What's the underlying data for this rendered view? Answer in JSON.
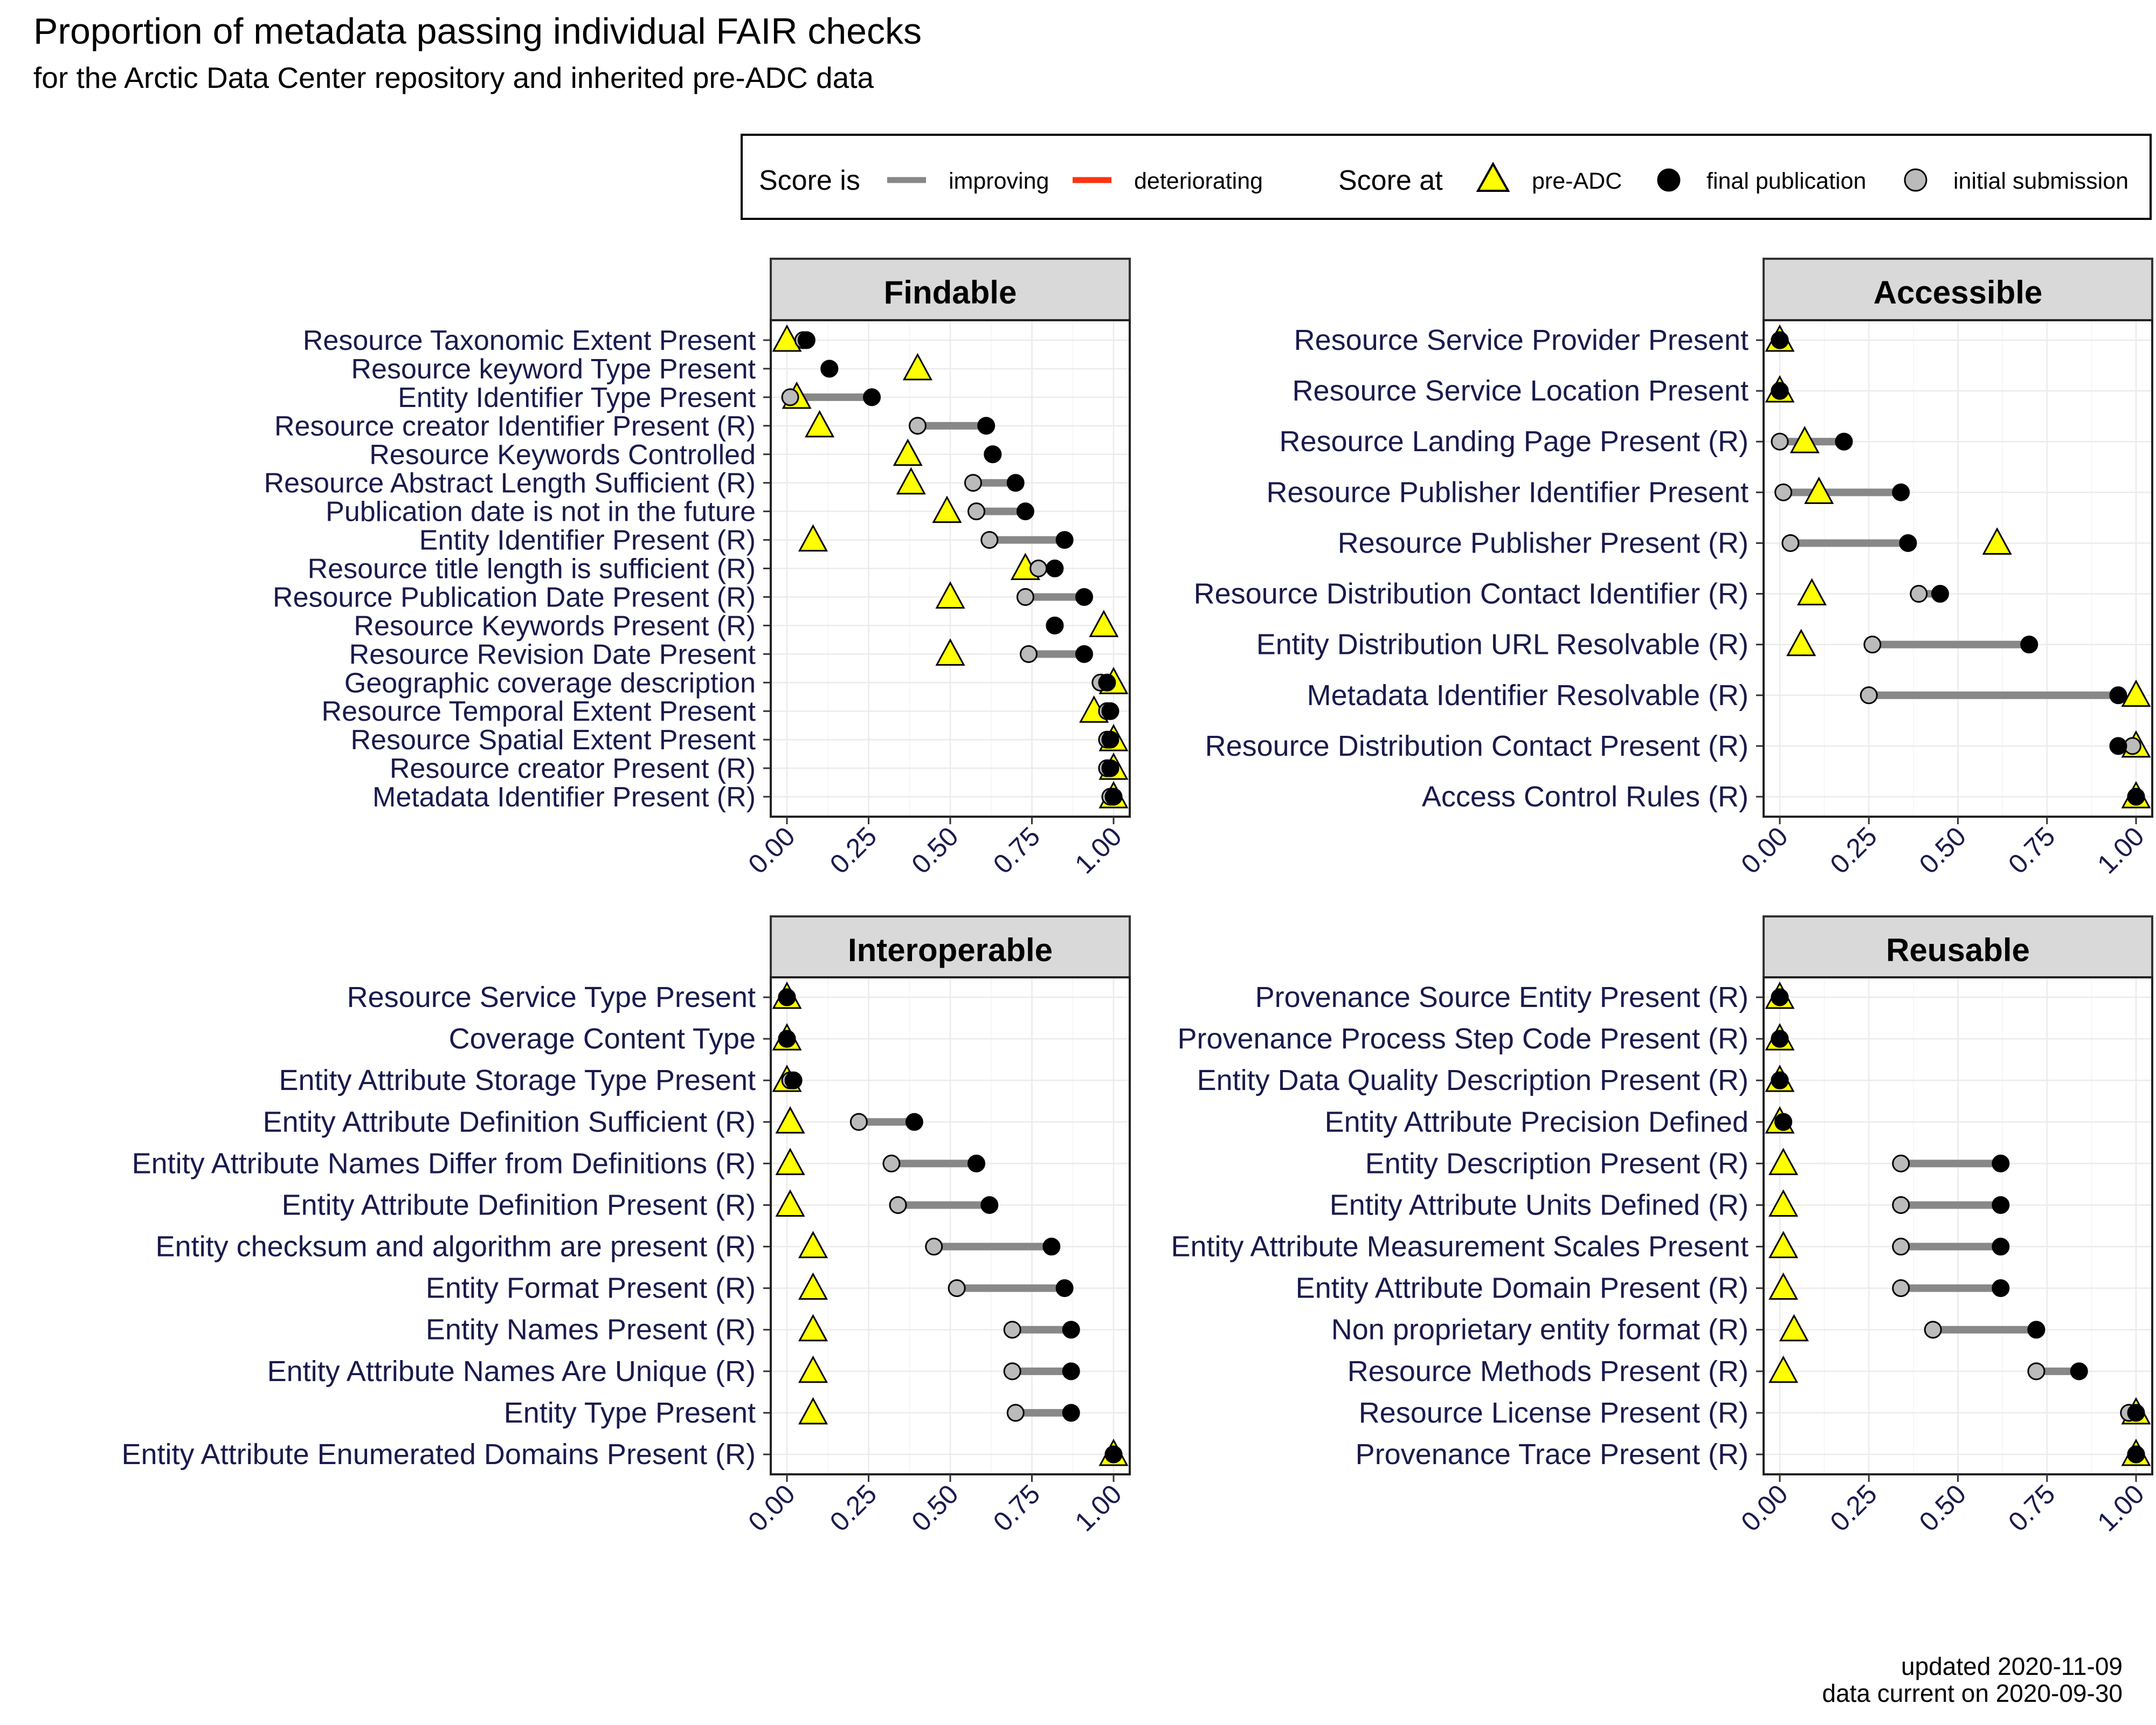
{
  "title": "Proportion of metadata passing individual FAIR checks",
  "subtitle": "for the Arctic Data Center repository and inherited pre-ADC data",
  "legend": {
    "score_is_label": "Score is",
    "improving_label": "improving",
    "deteriorating_label": "deteriorating",
    "score_at_label": "Score at",
    "pre_adc_label": "pre-ADC",
    "final_label": "final publication",
    "initial_label": "initial submission"
  },
  "caption": {
    "line1": "updated 2020-11-09",
    "line2": "data current on 2020-09-30"
  },
  "colors": {
    "improving": "#888888",
    "deteriorating": "#ff3311",
    "pre_adc_fill": "#ffff00",
    "final_fill": "#000000",
    "initial_fill": "#bbbbbb",
    "strip_fill": "#d9d9d9",
    "label_text": "#1a1a4d"
  },
  "chart_data": [
    {
      "type": "dumbbell",
      "title": "Findable",
      "xlim": [
        0,
        1
      ],
      "xticks": [
        "0.00",
        "0.25",
        "0.50",
        "0.75",
        "1.00"
      ],
      "series": [
        {
          "name": "pre-ADC"
        },
        {
          "name": "final publication"
        },
        {
          "name": "initial submission"
        }
      ],
      "checks": [
        {
          "label": "Resource Taxonomic Extent Present",
          "pre": 0.0,
          "initial": 0.05,
          "final": 0.06
        },
        {
          "label": "Resource keyword Type Present",
          "pre": 0.4,
          "initial": 0.13,
          "final": 0.13
        },
        {
          "label": "Entity Identifier Type Present",
          "pre": 0.03,
          "initial": 0.01,
          "final": 0.26
        },
        {
          "label": "Resource creator Identifier Present (R)",
          "pre": 0.1,
          "initial": 0.4,
          "final": 0.61
        },
        {
          "label": "Resource Keywords Controlled",
          "pre": 0.37,
          "initial": 0.63,
          "final": 0.63
        },
        {
          "label": "Resource Abstract Length Sufficient (R)",
          "pre": 0.38,
          "initial": 0.57,
          "final": 0.7
        },
        {
          "label": "Publication date is not in the future",
          "pre": 0.49,
          "initial": 0.58,
          "final": 0.73
        },
        {
          "label": "Entity Identifier Present (R)",
          "pre": 0.08,
          "initial": 0.62,
          "final": 0.85
        },
        {
          "label": "Resource title length is sufficient (R)",
          "pre": 0.73,
          "initial": 0.77,
          "final": 0.82
        },
        {
          "label": "Resource Publication Date Present (R)",
          "pre": 0.5,
          "initial": 0.73,
          "final": 0.91
        },
        {
          "label": "Resource Keywords Present (R)",
          "pre": 0.97,
          "initial": 0.82,
          "final": 0.82
        },
        {
          "label": "Resource Revision Date Present",
          "pre": 0.5,
          "initial": 0.74,
          "final": 0.91
        },
        {
          "label": "Geographic coverage description",
          "pre": 1.0,
          "initial": 0.96,
          "final": 0.98
        },
        {
          "label": "Resource Temporal Extent Present",
          "pre": 0.94,
          "initial": 0.98,
          "final": 0.99
        },
        {
          "label": "Resource Spatial Extent Present",
          "pre": 1.0,
          "initial": 0.98,
          "final": 0.99
        },
        {
          "label": "Resource creator Present (R)",
          "pre": 1.0,
          "initial": 0.98,
          "final": 0.99
        },
        {
          "label": "Metadata Identifier Present (R)",
          "pre": 1.0,
          "initial": 0.99,
          "final": 1.0
        }
      ]
    },
    {
      "type": "dumbbell",
      "title": "Accessible",
      "xlim": [
        0,
        1
      ],
      "xticks": [
        "0.00",
        "0.25",
        "0.50",
        "0.75",
        "1.00"
      ],
      "checks": [
        {
          "label": "Resource Service Provider Present",
          "pre": 0.0,
          "initial": 0.0,
          "final": 0.0
        },
        {
          "label": "Resource Service Location Present",
          "pre": 0.0,
          "initial": 0.0,
          "final": 0.0
        },
        {
          "label": "Resource Landing Page Present (R)",
          "pre": 0.07,
          "initial": 0.0,
          "final": 0.18
        },
        {
          "label": "Resource Publisher Identifier Present",
          "pre": 0.11,
          "initial": 0.01,
          "final": 0.34
        },
        {
          "label": "Resource Publisher Present (R)",
          "pre": 0.61,
          "initial": 0.03,
          "final": 0.36
        },
        {
          "label": "Resource Distribution Contact Identifier (R)",
          "pre": 0.09,
          "initial": 0.39,
          "final": 0.45
        },
        {
          "label": "Entity Distribution URL Resolvable (R)",
          "pre": 0.06,
          "initial": 0.26,
          "final": 0.7
        },
        {
          "label": "Metadata Identifier Resolvable (R)",
          "pre": 1.0,
          "initial": 0.25,
          "final": 0.95
        },
        {
          "label": "Resource Distribution Contact Present (R)",
          "pre": 1.0,
          "initial": 0.99,
          "final": 0.95
        },
        {
          "label": "Access Control Rules (R)",
          "pre": 1.0,
          "initial": 1.0,
          "final": 1.0
        }
      ]
    },
    {
      "type": "dumbbell",
      "title": "Interoperable",
      "xlim": [
        0,
        1
      ],
      "xticks": [
        "0.00",
        "0.25",
        "0.50",
        "0.75",
        "1.00"
      ],
      "checks": [
        {
          "label": "Resource Service Type Present",
          "pre": 0.0,
          "initial": 0.0,
          "final": 0.0
        },
        {
          "label": "Coverage Content Type",
          "pre": 0.0,
          "initial": 0.0,
          "final": 0.0
        },
        {
          "label": "Entity Attribute Storage Type Present",
          "pre": 0.0,
          "initial": 0.01,
          "final": 0.02
        },
        {
          "label": "Entity Attribute Definition Sufficient (R)",
          "pre": 0.01,
          "initial": 0.22,
          "final": 0.39
        },
        {
          "label": "Entity Attribute Names Differ from Definitions (R)",
          "pre": 0.01,
          "initial": 0.32,
          "final": 0.58
        },
        {
          "label": "Entity Attribute Definition Present (R)",
          "pre": 0.01,
          "initial": 0.34,
          "final": 0.62
        },
        {
          "label": "Entity checksum and algorithm are present (R)",
          "pre": 0.08,
          "initial": 0.45,
          "final": 0.81
        },
        {
          "label": "Entity Format Present (R)",
          "pre": 0.08,
          "initial": 0.52,
          "final": 0.85
        },
        {
          "label": "Entity Names Present (R)",
          "pre": 0.08,
          "initial": 0.69,
          "final": 0.87
        },
        {
          "label": "Entity Attribute Names Are Unique (R)",
          "pre": 0.08,
          "initial": 0.69,
          "final": 0.87
        },
        {
          "label": "Entity Type Present",
          "pre": 0.08,
          "initial": 0.7,
          "final": 0.87
        },
        {
          "label": "Entity Attribute Enumerated Domains Present (R)",
          "pre": 1.0,
          "initial": 1.0,
          "final": 1.0
        }
      ]
    },
    {
      "type": "dumbbell",
      "title": "Reusable",
      "xlim": [
        0,
        1
      ],
      "xticks": [
        "0.00",
        "0.25",
        "0.50",
        "0.75",
        "1.00"
      ],
      "checks": [
        {
          "label": "Provenance Source Entity Present (R)",
          "pre": 0.0,
          "initial": 0.0,
          "final": 0.0
        },
        {
          "label": "Provenance Process Step Code Present (R)",
          "pre": 0.0,
          "initial": 0.0,
          "final": 0.0
        },
        {
          "label": "Entity Data Quality Description Present (R)",
          "pre": 0.0,
          "initial": 0.0,
          "final": 0.0
        },
        {
          "label": "Entity Attribute Precision Defined",
          "pre": 0.0,
          "initial": 0.01,
          "final": 0.01
        },
        {
          "label": "Entity Description Present (R)",
          "pre": 0.01,
          "initial": 0.34,
          "final": 0.62
        },
        {
          "label": "Entity Attribute Units Defined (R)",
          "pre": 0.01,
          "initial": 0.34,
          "final": 0.62
        },
        {
          "label": "Entity Attribute Measurement Scales Present",
          "pre": 0.01,
          "initial": 0.34,
          "final": 0.62
        },
        {
          "label": "Entity Attribute Domain Present (R)",
          "pre": 0.01,
          "initial": 0.34,
          "final": 0.62
        },
        {
          "label": "Non proprietary entity format (R)",
          "pre": 0.04,
          "initial": 0.43,
          "final": 0.72
        },
        {
          "label": "Resource Methods Present (R)",
          "pre": 0.01,
          "initial": 0.72,
          "final": 0.84
        },
        {
          "label": "Resource License Present (R)",
          "pre": 1.0,
          "initial": 0.98,
          "final": 1.0
        },
        {
          "label": "Provenance Trace Present (R)",
          "pre": 1.0,
          "initial": 1.0,
          "final": 1.0
        }
      ]
    }
  ]
}
